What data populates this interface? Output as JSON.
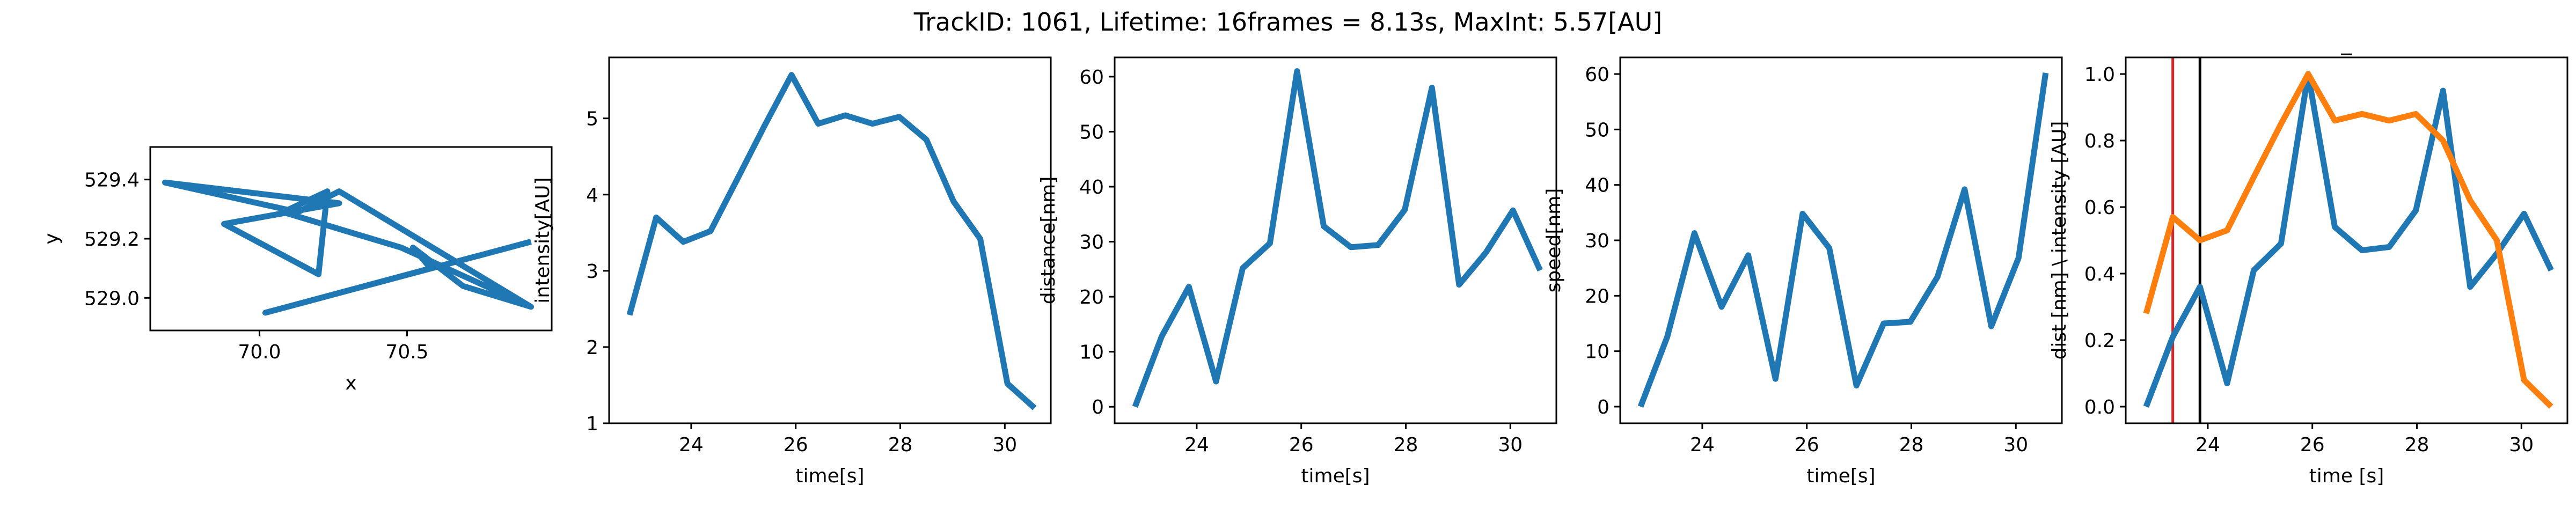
{
  "figure": {
    "title": "TrackID: 1061, Lifetime: 16frames = 8.13s, MaxInt: 5.57[AU]"
  },
  "colors": {
    "series_blue": "#1f77b4",
    "series_orange": "#ff7f0e",
    "marker_red": "#d62728",
    "marker_black": "#000000"
  },
  "chart_data": [
    {
      "type": "line",
      "name": "trajectory",
      "title": "",
      "xlabel": "x",
      "ylabel": "y",
      "xlim": [
        69.63,
        70.99
      ],
      "ylim": [
        528.89,
        529.51
      ],
      "xticks": [
        70.0,
        70.5
      ],
      "xtick_labels": [
        "70.0",
        "70.5"
      ],
      "yticks": [
        529.0,
        529.2,
        529.4
      ],
      "ytick_labels": [
        "529.0",
        "529.2",
        "529.4"
      ],
      "grid": false,
      "series": [
        {
          "color": "#1f77b4",
          "x": [
            70.92,
            70.02,
            70.58,
            70.52,
            70.69,
            70.92,
            70.48,
            70.08,
            70.23,
            70.2,
            69.88,
            70.27,
            69.68,
            70.13,
            70.27,
            70.92
          ],
          "y": [
            529.19,
            528.95,
            529.1,
            529.17,
            529.04,
            528.97,
            529.17,
            529.29,
            529.36,
            529.08,
            529.25,
            529.32,
            529.39,
            529.29,
            529.36,
            528.97
          ]
        }
      ]
    },
    {
      "type": "line",
      "name": "intensity",
      "title": "",
      "xlabel": "time[s]",
      "ylabel": "intensity[AU]",
      "xlim": [
        22.43,
        30.88
      ],
      "ylim": [
        1.0,
        5.8
      ],
      "xticks": [
        24,
        26,
        28,
        30
      ],
      "xtick_labels": [
        "24",
        "26",
        "28",
        "30"
      ],
      "yticks": [
        1,
        2,
        3,
        4,
        5
      ],
      "ytick_labels": [
        "1",
        "2",
        "3",
        "4",
        "5"
      ],
      "grid": false,
      "series": [
        {
          "color": "#1f77b4",
          "x": [
            22.82,
            23.33,
            23.85,
            24.37,
            24.88,
            25.4,
            25.92,
            26.43,
            26.95,
            27.47,
            27.98,
            28.5,
            29.02,
            29.53,
            30.05,
            30.57
          ],
          "y": [
            2.42,
            3.7,
            3.38,
            3.52,
            4.2,
            4.9,
            5.57,
            4.93,
            5.04,
            4.93,
            5.02,
            4.72,
            3.91,
            3.42,
            1.52,
            1.2
          ]
        }
      ]
    },
    {
      "type": "line",
      "name": "distance",
      "title": "",
      "xlabel": "time[s]",
      "ylabel": "distance[nm]",
      "xlim": [
        22.43,
        30.88
      ],
      "ylim": [
        -3.0,
        63.5
      ],
      "xticks": [
        24,
        26,
        28,
        30
      ],
      "xtick_labels": [
        "24",
        "26",
        "28",
        "30"
      ],
      "yticks": [
        0,
        10,
        20,
        30,
        40,
        50,
        60
      ],
      "ytick_labels": [
        "0",
        "10",
        "20",
        "30",
        "40",
        "50",
        "60"
      ],
      "grid": false,
      "series": [
        {
          "color": "#1f77b4",
          "x": [
            22.82,
            23.33,
            23.85,
            24.37,
            24.88,
            25.4,
            25.92,
            26.43,
            26.95,
            27.47,
            27.98,
            28.5,
            29.02,
            29.53,
            30.05,
            30.57
          ],
          "y": [
            0.0,
            12.8,
            21.8,
            4.6,
            25.2,
            29.7,
            61.0,
            32.8,
            29.0,
            29.4,
            35.8,
            58.0,
            22.2,
            28.0,
            35.7,
            24.8
          ]
        }
      ]
    },
    {
      "type": "line",
      "name": "speed",
      "title": "",
      "xlabel": "time[s]",
      "ylabel": "speed[nm]",
      "xlim": [
        22.43,
        30.88
      ],
      "ylim": [
        -3.0,
        63.0
      ],
      "xticks": [
        24,
        26,
        28,
        30
      ],
      "xtick_labels": [
        "24",
        "26",
        "28",
        "30"
      ],
      "yticks": [
        0,
        10,
        20,
        30,
        40,
        50,
        60
      ],
      "ytick_labels": [
        "0",
        "10",
        "20",
        "30",
        "40",
        "50",
        "60"
      ],
      "grid": false,
      "series": [
        {
          "color": "#1f77b4",
          "x": [
            22.82,
            23.33,
            23.85,
            24.37,
            24.88,
            25.4,
            25.92,
            26.43,
            26.95,
            27.47,
            27.98,
            28.5,
            29.02,
            29.53,
            30.05,
            30.57
          ],
          "y": [
            0.0,
            12.6,
            31.3,
            18.0,
            27.3,
            5.0,
            34.8,
            28.6,
            3.8,
            15.0,
            15.3,
            23.4,
            39.2,
            14.5,
            26.8,
            60.2
          ]
        }
      ]
    },
    {
      "type": "line",
      "name": "normalized",
      "title": "_",
      "xlabel": "time [s]",
      "ylabel": "dist [nm] \\ intensity [AU]",
      "xlim": [
        22.43,
        30.88
      ],
      "ylim": [
        -0.05,
        1.05
      ],
      "xticks": [
        24,
        26,
        28,
        30
      ],
      "xtick_labels": [
        "24",
        "26",
        "28",
        "30"
      ],
      "yticks": [
        0.0,
        0.2,
        0.4,
        0.6,
        0.8,
        1.0
      ],
      "ytick_labels": [
        "0.0",
        "0.2",
        "0.4",
        "0.6",
        "0.8",
        "1.0"
      ],
      "grid": false,
      "vlines": [
        {
          "x": 23.33,
          "color": "#d62728"
        },
        {
          "x": 23.85,
          "color": "#000000"
        }
      ],
      "series": [
        {
          "color": "#1f77b4",
          "x": [
            22.82,
            23.33,
            23.85,
            24.37,
            24.88,
            25.4,
            25.92,
            26.43,
            26.95,
            27.47,
            27.98,
            28.5,
            29.02,
            29.53,
            30.05,
            30.57
          ],
          "y": [
            0.0,
            0.21,
            0.36,
            0.07,
            0.41,
            0.49,
            1.0,
            0.54,
            0.47,
            0.48,
            0.59,
            0.95,
            0.36,
            0.46,
            0.58,
            0.41
          ]
        },
        {
          "color": "#ff7f0e",
          "x": [
            22.82,
            23.33,
            23.85,
            24.37,
            24.88,
            25.4,
            25.92,
            26.43,
            26.95,
            27.47,
            27.98,
            28.5,
            29.02,
            29.53,
            30.05,
            30.57
          ],
          "y": [
            0.28,
            0.57,
            0.5,
            0.53,
            0.69,
            0.85,
            1.0,
            0.86,
            0.88,
            0.86,
            0.88,
            0.8,
            0.62,
            0.5,
            0.08,
            0.0
          ]
        }
      ]
    }
  ]
}
